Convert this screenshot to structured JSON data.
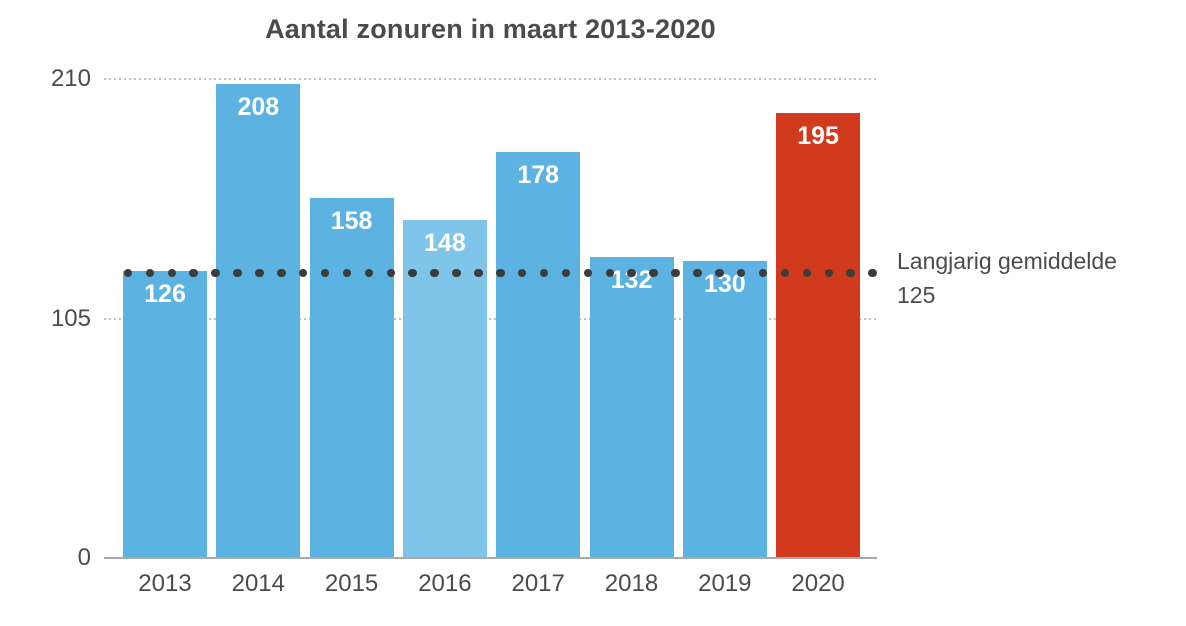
{
  "chart_data": {
    "type": "bar",
    "title": "Aantal zonuren in maart 2013-2020",
    "categories": [
      "2013",
      "2014",
      "2015",
      "2016",
      "2017",
      "2018",
      "2019",
      "2020"
    ],
    "values": [
      126,
      208,
      158,
      148,
      178,
      132,
      130,
      195
    ],
    "bar_colors": [
      "#5CB3E2",
      "#5CB3E2",
      "#5CB3E2",
      "#7FC4E9",
      "#5CB3E2",
      "#5CB3E2",
      "#5CB3E2",
      "#D23A1E"
    ],
    "xlabel": "",
    "ylabel": "",
    "ylim": [
      0,
      210
    ],
    "yticks": [
      0,
      105,
      210
    ],
    "grid": "horizontal-dotted",
    "legend": "none",
    "value_labels": "inside-top-white",
    "reference_line": {
      "value": 125,
      "label_line1": "Langjarig gemiddelde",
      "label_line2": "125",
      "style": "dotted"
    },
    "colors": {
      "bar_default": "#5CB3E2",
      "bar_light_2016": "#7FC4E9",
      "bar_highlight_2020": "#D23A1E",
      "reference_dots": "#3C3C3C",
      "gridline": "#C0C0C0",
      "axis_line": "#A9A9A9",
      "text": "#4B4B4B",
      "value_label": "#FFFFFF",
      "background": "#FFFFFF"
    }
  }
}
